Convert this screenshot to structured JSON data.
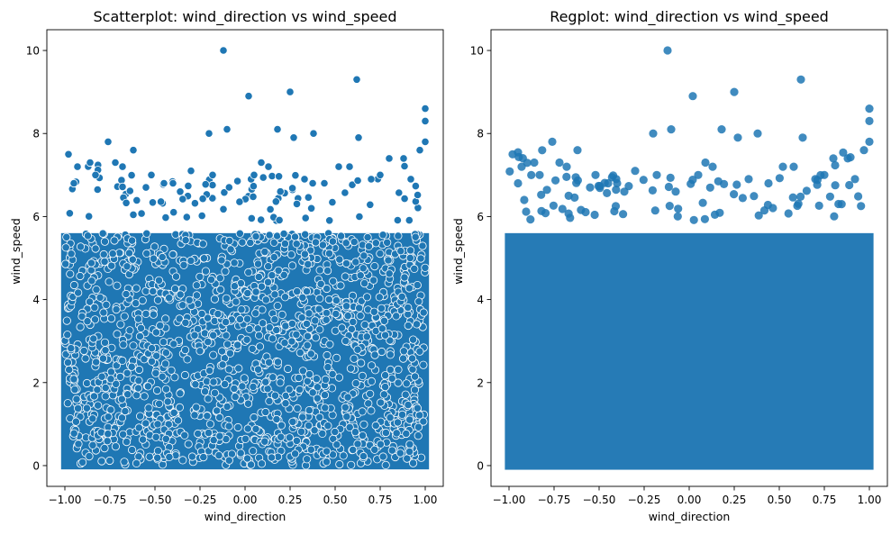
{
  "chart_data": [
    {
      "type": "scatter",
      "title": "Scatterplot: wind_direction vs wind_speed",
      "xlabel": "wind_direction",
      "ylabel": "wind_speed",
      "xlim": [
        -1.1,
        1.1
      ],
      "ylim": [
        -0.5,
        10.5
      ],
      "xticks": [
        "−1.00",
        "−0.75",
        "−0.50",
        "−0.25",
        "0.00",
        "0.25",
        "0.50",
        "0.75",
        "1.00"
      ],
      "yticks": [
        "0",
        "2",
        "4",
        "6",
        "8",
        "10"
      ],
      "grid": false,
      "point_color": "#1f77b4",
      "point_edge": "#ffffff",
      "dense_region": {
        "x": [
          -1.0,
          1.0
        ],
        "y": [
          0,
          5.6
        ]
      },
      "series": [
        {
          "x": [
            -0.12,
            0.62,
            0.25,
            0.02,
            1.0,
            0.63,
            -0.1,
            0.38,
            0.27,
            0.18,
            0.09,
            -0.2,
            1.0,
            1.0,
            -0.76,
            -0.62,
            0.97,
            -0.98,
            0.88,
            0.58,
            0.8,
            0.52,
            -0.86,
            -0.52,
            -0.68,
            0.13,
            -0.93,
            -0.3,
            -0.4,
            0.33,
            0.7,
            -0.72,
            -0.45,
            0.44,
            -0.83,
            -0.18,
            0.05,
            -0.36,
            0.75,
            -0.55,
            -0.95,
            0.92
          ],
          "y": [
            10.0,
            9.3,
            9.0,
            8.9,
            8.6,
            7.9,
            8.1,
            8.0,
            7.9,
            8.1,
            7.3,
            8.0,
            8.3,
            7.8,
            7.8,
            7.6,
            7.6,
            7.5,
            7.4,
            7.2,
            7.4,
            7.2,
            7.3,
            7.0,
            7.2,
            7.2,
            7.2,
            7.1,
            6.8,
            6.9,
            6.9,
            7.3,
            6.8,
            6.8,
            7.0,
            7.0,
            7.0,
            6.6,
            7.0,
            6.7,
            6.8,
            6.9
          ]
        }
      ]
    },
    {
      "type": "scatter",
      "title": "Regplot: wind_direction vs wind_speed",
      "xlabel": "wind_direction",
      "ylabel": "wind_speed",
      "xlim": [
        -1.1,
        1.1
      ],
      "ylim": [
        -0.5,
        10.5
      ],
      "xticks": [
        "−1.00",
        "−0.75",
        "−0.50",
        "−0.25",
        "0.00",
        "0.25",
        "0.50",
        "0.75",
        "1.00"
      ],
      "yticks": [
        "0",
        "2",
        "4",
        "6",
        "8",
        "10"
      ],
      "grid": false,
      "point_color": "#1f77b4",
      "dense_region": {
        "x": [
          -1.0,
          1.0
        ],
        "y": [
          0,
          5.6
        ]
      },
      "series": [
        {
          "x": [
            -0.12,
            0.62,
            0.25,
            0.02,
            1.0,
            0.63,
            -0.1,
            0.38,
            0.27,
            0.18,
            0.09,
            -0.2,
            1.0,
            1.0,
            -0.76,
            -0.62,
            0.97,
            -0.98,
            0.88,
            0.58,
            0.8,
            0.52,
            -0.86,
            -0.52,
            -0.68,
            0.13,
            -0.93,
            -0.3,
            -0.4,
            0.33,
            0.7,
            -0.72,
            -0.45,
            0.44,
            -0.83,
            -0.18,
            0.05,
            -0.36,
            0.75,
            -0.55,
            -0.95,
            0.92
          ],
          "y": [
            10.0,
            9.3,
            9.0,
            8.9,
            8.6,
            7.9,
            8.1,
            8.0,
            7.9,
            8.1,
            7.3,
            8.0,
            8.3,
            7.8,
            7.8,
            7.6,
            7.6,
            7.5,
            7.4,
            7.2,
            7.4,
            7.2,
            7.3,
            7.0,
            7.2,
            7.2,
            7.2,
            7.1,
            6.8,
            6.9,
            6.9,
            7.3,
            6.8,
            6.8,
            7.0,
            7.0,
            7.0,
            6.6,
            7.0,
            6.7,
            6.8,
            6.9
          ]
        }
      ]
    }
  ]
}
